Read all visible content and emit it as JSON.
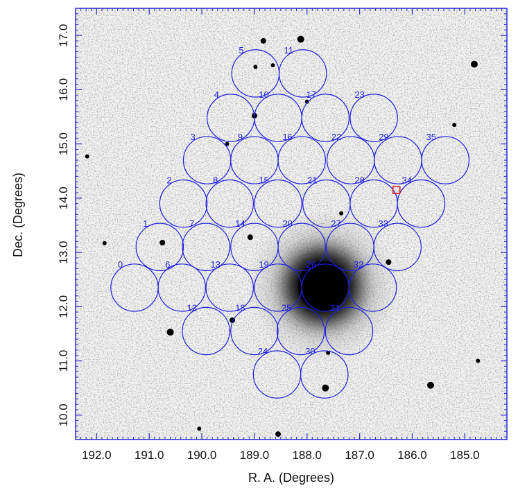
{
  "figure": {
    "xlabel": "R. A. (Degrees)",
    "ylabel": "Dec. (Degrees)",
    "x_ticks": [
      "192.0",
      "191.0",
      "190.0",
      "189.0",
      "188.0",
      "187.0",
      "186.0",
      "185.0"
    ],
    "y_ticks": [
      "10.0",
      "11.0",
      "12.0",
      "13.0",
      "14.0",
      "15.0",
      "16.0",
      "17.0"
    ],
    "xlim": [
      192.4,
      184.2
    ],
    "ylim": [
      9.55,
      17.5
    ],
    "colors": {
      "frame": "#2a2ad0",
      "circles": "#1f1fe0",
      "marker": "#e01010"
    }
  },
  "fields": [
    {
      "label": "0",
      "ra": 191.28,
      "dec": 12.35
    },
    {
      "label": "1",
      "ra": 190.8,
      "dec": 13.1
    },
    {
      "label": "2",
      "ra": 190.35,
      "dec": 13.9
    },
    {
      "label": "3",
      "ra": 189.9,
      "dec": 14.7
    },
    {
      "label": "4",
      "ra": 189.45,
      "dec": 15.48
    },
    {
      "label": "5",
      "ra": 188.98,
      "dec": 16.3
    },
    {
      "label": "6",
      "ra": 190.38,
      "dec": 12.35
    },
    {
      "label": "7",
      "ra": 189.92,
      "dec": 13.1
    },
    {
      "label": "8",
      "ra": 189.47,
      "dec": 13.9
    },
    {
      "label": "9",
      "ra": 189.0,
      "dec": 14.7
    },
    {
      "label": "10",
      "ra": 188.55,
      "dec": 15.48
    },
    {
      "label": "11",
      "ra": 188.08,
      "dec": 16.3
    },
    {
      "label": "12",
      "ra": 189.92,
      "dec": 11.55
    },
    {
      "label": "13",
      "ra": 189.47,
      "dec": 12.35
    },
    {
      "label": "14",
      "ra": 189.0,
      "dec": 13.1
    },
    {
      "label": "15",
      "ra": 188.55,
      "dec": 13.9
    },
    {
      "label": "16",
      "ra": 188.1,
      "dec": 14.7
    },
    {
      "label": "17",
      "ra": 187.65,
      "dec": 15.48
    },
    {
      "label": "18",
      "ra": 189.0,
      "dec": 11.55
    },
    {
      "label": "19",
      "ra": 188.55,
      "dec": 12.35
    },
    {
      "label": "20",
      "ra": 188.1,
      "dec": 13.1
    },
    {
      "label": "21",
      "ra": 187.63,
      "dec": 13.9
    },
    {
      "label": "22",
      "ra": 187.17,
      "dec": 14.7
    },
    {
      "label": "23",
      "ra": 186.73,
      "dec": 15.48
    },
    {
      "label": "24",
      "ra": 188.57,
      "dec": 10.75
    },
    {
      "label": "25",
      "ra": 188.12,
      "dec": 11.55
    },
    {
      "label": "26",
      "ra": 187.65,
      "dec": 12.35
    },
    {
      "label": "27",
      "ra": 187.18,
      "dec": 13.1
    },
    {
      "label": "28",
      "ra": 186.73,
      "dec": 13.9
    },
    {
      "label": "29",
      "ra": 186.27,
      "dec": 14.7
    },
    {
      "label": "30",
      "ra": 187.67,
      "dec": 10.75
    },
    {
      "label": "31",
      "ra": 187.2,
      "dec": 11.55
    },
    {
      "label": "32",
      "ra": 186.75,
      "dec": 12.35
    },
    {
      "label": "33",
      "ra": 186.28,
      "dec": 13.1
    },
    {
      "label": "34",
      "ra": 185.83,
      "dec": 13.9
    },
    {
      "label": "35",
      "ra": 185.37,
      "dec": 14.7
    }
  ],
  "field_radius_deg": 0.45,
  "marker": {
    "ra": 186.3,
    "dec": 14.15
  },
  "sky": {
    "cluster_core": {
      "ra": 187.7,
      "dec": 12.38
    },
    "stars": [
      {
        "ra": 190.75,
        "dec": 13.18,
        "mag": 4
      },
      {
        "ra": 191.85,
        "dec": 13.17,
        "mag": 3
      },
      {
        "ra": 190.6,
        "dec": 11.53,
        "mag": 5
      },
      {
        "ra": 189.52,
        "dec": 15.0,
        "mag": 3
      },
      {
        "ra": 189.0,
        "dec": 15.52,
        "mag": 4
      },
      {
        "ra": 188.83,
        "dec": 16.9,
        "mag": 4
      },
      {
        "ra": 188.98,
        "dec": 16.42,
        "mag": 3
      },
      {
        "ra": 188.65,
        "dec": 16.45,
        "mag": 3
      },
      {
        "ra": 189.08,
        "dec": 13.28,
        "mag": 4
      },
      {
        "ra": 189.42,
        "dec": 11.75,
        "mag": 4
      },
      {
        "ra": 188.12,
        "dec": 16.93,
        "mag": 5
      },
      {
        "ra": 184.82,
        "dec": 16.47,
        "mag": 5
      },
      {
        "ra": 187.6,
        "dec": 11.15,
        "mag": 3
      },
      {
        "ra": 187.65,
        "dec": 10.5,
        "mag": 5
      },
      {
        "ra": 185.65,
        "dec": 10.55,
        "mag": 5
      },
      {
        "ra": 184.75,
        "dec": 11.0,
        "mag": 3
      },
      {
        "ra": 188.55,
        "dec": 9.65,
        "mag": 4
      },
      {
        "ra": 186.45,
        "dec": 12.82,
        "mag": 4
      },
      {
        "ra": 187.35,
        "dec": 13.72,
        "mag": 3
      },
      {
        "ra": 188.0,
        "dec": 15.78,
        "mag": 3
      },
      {
        "ra": 185.2,
        "dec": 15.35,
        "mag": 3
      },
      {
        "ra": 192.18,
        "dec": 14.77,
        "mag": 3
      },
      {
        "ra": 190.05,
        "dec": 9.75,
        "mag": 3
      }
    ]
  }
}
